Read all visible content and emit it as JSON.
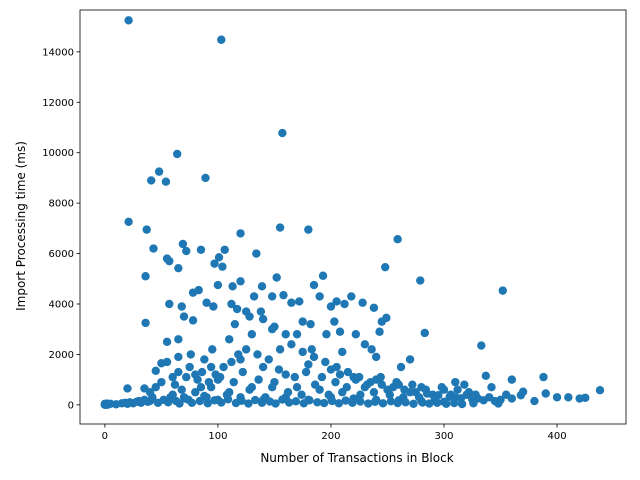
{
  "chart_data": {
    "type": "scatter",
    "title": "",
    "xlabel": "Number of Transactions in Block",
    "ylabel": "Import Processing time (ms)",
    "xlim": [
      -22,
      461
    ],
    "ylim": [
      -760,
      15660
    ],
    "xticks": [
      0,
      100,
      200,
      300,
      400
    ],
    "yticks": [
      0,
      2000,
      4000,
      6000,
      8000,
      10000,
      12000,
      14000
    ],
    "grid": false,
    "legend": "none",
    "marker_color": "#1f77b4",
    "points": [
      [
        0,
        0
      ],
      [
        0,
        20
      ],
      [
        0,
        40
      ],
      [
        1,
        10
      ],
      [
        1,
        30
      ],
      [
        2,
        0
      ],
      [
        2,
        50
      ],
      [
        3,
        20
      ],
      [
        5,
        40
      ],
      [
        10,
        20
      ],
      [
        15,
        60
      ],
      [
        18,
        80
      ],
      [
        20,
        40
      ],
      [
        22,
        100
      ],
      [
        25,
        60
      ],
      [
        28,
        120
      ],
      [
        30,
        150
      ],
      [
        32,
        80
      ],
      [
        35,
        200
      ],
      [
        38,
        120
      ],
      [
        21,
        15250
      ],
      [
        103,
        14480
      ],
      [
        157,
        10780
      ],
      [
        64,
        9950
      ],
      [
        48,
        9250
      ],
      [
        89,
        9000
      ],
      [
        41,
        8900
      ],
      [
        54,
        8850
      ],
      [
        21,
        7260
      ],
      [
        37,
        6950
      ],
      [
        120,
        6800
      ],
      [
        155,
        7030
      ],
      [
        180,
        6950
      ],
      [
        69,
        6380
      ],
      [
        259,
        6570
      ],
      [
        43,
        6200
      ],
      [
        72,
        6100
      ],
      [
        85,
        6150
      ],
      [
        55,
        5800
      ],
      [
        57,
        5700
      ],
      [
        97,
        5600
      ],
      [
        101,
        5850
      ],
      [
        106,
        6150
      ],
      [
        134,
        6000
      ],
      [
        36,
        5100
      ],
      [
        104,
        5480
      ],
      [
        65,
        5420
      ],
      [
        193,
        5120
      ],
      [
        248,
        5460
      ],
      [
        279,
        4930
      ],
      [
        352,
        4530
      ],
      [
        57,
        4000
      ],
      [
        68,
        3900
      ],
      [
        78,
        4450
      ],
      [
        83,
        4550
      ],
      [
        90,
        4050
      ],
      [
        96,
        3900
      ],
      [
        100,
        4750
      ],
      [
        113,
        4700
      ],
      [
        120,
        4900
      ],
      [
        132,
        4300
      ],
      [
        139,
        4700
      ],
      [
        148,
        4300
      ],
      [
        152,
        5050
      ],
      [
        158,
        4350
      ],
      [
        165,
        4050
      ],
      [
        172,
        4100
      ],
      [
        185,
        4750
      ],
      [
        190,
        4300
      ],
      [
        200,
        3900
      ],
      [
        205,
        4100
      ],
      [
        212,
        4000
      ],
      [
        218,
        4300
      ],
      [
        228,
        4050
      ],
      [
        238,
        3850
      ],
      [
        245,
        3300
      ],
      [
        249,
        3450
      ],
      [
        283,
        2850
      ],
      [
        70,
        3500
      ],
      [
        78,
        3350
      ],
      [
        36,
        3250
      ],
      [
        65,
        2600
      ],
      [
        333,
        2350
      ],
      [
        55,
        2500
      ],
      [
        65,
        1900
      ],
      [
        50,
        1650
      ],
      [
        55,
        1700
      ],
      [
        45,
        1350
      ],
      [
        35,
        650
      ],
      [
        20,
        650
      ],
      [
        60,
        1100
      ],
      [
        80,
        1200
      ],
      [
        100,
        1000
      ],
      [
        120,
        1800
      ],
      [
        140,
        1500
      ],
      [
        160,
        1200
      ],
      [
        180,
        1600
      ],
      [
        200,
        1400
      ],
      [
        220,
        1100
      ],
      [
        240,
        1000
      ],
      [
        260,
        800
      ],
      [
        280,
        700
      ],
      [
        300,
        600
      ],
      [
        320,
        400
      ],
      [
        340,
        300
      ],
      [
        360,
        250
      ],
      [
        380,
        150
      ],
      [
        400,
        300
      ],
      [
        410,
        300
      ],
      [
        420,
        250
      ],
      [
        425,
        280
      ],
      [
        438,
        580
      ],
      [
        390,
        450
      ],
      [
        388,
        1100
      ],
      [
        360,
        1000
      ],
      [
        368,
        380
      ],
      [
        370,
        520
      ],
      [
        337,
        1150
      ],
      [
        310,
        900
      ],
      [
        270,
        1800
      ],
      [
        262,
        1500
      ],
      [
        240,
        1900
      ],
      [
        230,
        2400
      ],
      [
        210,
        2100
      ],
      [
        196,
        2800
      ],
      [
        182,
        3200
      ],
      [
        170,
        2800
      ],
      [
        150,
        3100
      ],
      [
        140,
        3400
      ],
      [
        130,
        2800
      ],
      [
        115,
        3200
      ],
      [
        110,
        2600
      ],
      [
        95,
        2200
      ],
      [
        88,
        1800
      ],
      [
        75,
        1500
      ],
      [
        65,
        1300
      ],
      [
        50,
        900
      ],
      [
        45,
        700
      ],
      [
        40,
        500
      ],
      [
        110,
        500
      ],
      [
        130,
        700
      ],
      [
        150,
        900
      ],
      [
        170,
        700
      ],
      [
        190,
        600
      ],
      [
        210,
        500
      ],
      [
        230,
        700
      ],
      [
        250,
        600
      ],
      [
        270,
        500
      ],
      [
        290,
        400
      ],
      [
        310,
        300
      ],
      [
        330,
        250
      ],
      [
        350,
        200
      ],
      [
        90,
        300
      ],
      [
        100,
        200
      ],
      [
        120,
        300
      ],
      [
        140,
        200
      ],
      [
        160,
        300
      ],
      [
        180,
        200
      ],
      [
        200,
        300
      ],
      [
        220,
        250
      ],
      [
        240,
        200
      ],
      [
        260,
        180
      ],
      [
        280,
        150
      ],
      [
        300,
        120
      ],
      [
        60,
        400
      ],
      [
        70,
        300
      ],
      [
        80,
        500
      ],
      [
        85,
        700
      ],
      [
        92,
        900
      ],
      [
        98,
        1200
      ],
      [
        105,
        1500
      ],
      [
        112,
        1700
      ],
      [
        118,
        2000
      ],
      [
        125,
        2200
      ],
      [
        135,
        2000
      ],
      [
        145,
        1800
      ],
      [
        155,
        2200
      ],
      [
        165,
        2400
      ],
      [
        175,
        2100
      ],
      [
        185,
        1900
      ],
      [
        195,
        1700
      ],
      [
        205,
        1500
      ],
      [
        215,
        1300
      ],
      [
        225,
        1100
      ],
      [
        235,
        900
      ],
      [
        245,
        800
      ],
      [
        255,
        700
      ],
      [
        265,
        600
      ],
      [
        275,
        500
      ],
      [
        285,
        450
      ],
      [
        295,
        380
      ],
      [
        305,
        320
      ],
      [
        315,
        260
      ],
      [
        325,
        220
      ],
      [
        335,
        180
      ],
      [
        345,
        150
      ],
      [
        76,
        2000
      ],
      [
        72,
        1100
      ],
      [
        58,
        300
      ],
      [
        62,
        800
      ],
      [
        68,
        600
      ],
      [
        74,
        200
      ],
      [
        82,
        1000
      ],
      [
        88,
        350
      ],
      [
        94,
        700
      ],
      [
        102,
        1100
      ],
      [
        108,
        400
      ],
      [
        114,
        900
      ],
      [
        122,
        1300
      ],
      [
        128,
        600
      ],
      [
        136,
        1000
      ],
      [
        142,
        300
      ],
      [
        148,
        700
      ],
      [
        154,
        1400
      ],
      [
        162,
        500
      ],
      [
        168,
        1100
      ],
      [
        174,
        400
      ],
      [
        178,
        1300
      ],
      [
        186,
        800
      ],
      [
        192,
        1100
      ],
      [
        198,
        400
      ],
      [
        204,
        900
      ],
      [
        208,
        1200
      ],
      [
        214,
        700
      ],
      [
        222,
        1000
      ],
      [
        226,
        400
      ],
      [
        232,
        800
      ],
      [
        238,
        500
      ],
      [
        244,
        1100
      ],
      [
        252,
        400
      ],
      [
        258,
        900
      ],
      [
        264,
        300
      ],
      [
        272,
        800
      ],
      [
        278,
        300
      ],
      [
        284,
        600
      ],
      [
        292,
        200
      ],
      [
        298,
        700
      ],
      [
        306,
        400
      ],
      [
        312,
        600
      ],
      [
        318,
        800
      ],
      [
        322,
        500
      ],
      [
        328,
        400
      ],
      [
        342,
        700
      ],
      [
        355,
        400
      ],
      [
        40,
        150
      ],
      [
        42,
        300
      ],
      [
        47,
        80
      ],
      [
        52,
        200
      ],
      [
        56,
        100
      ],
      [
        63,
        150
      ],
      [
        66,
        50
      ],
      [
        71,
        250
      ],
      [
        77,
        80
      ],
      [
        84,
        150
      ],
      [
        91,
        60
      ],
      [
        97,
        180
      ],
      [
        103,
        90
      ],
      [
        109,
        220
      ],
      [
        116,
        70
      ],
      [
        121,
        160
      ],
      [
        127,
        50
      ],
      [
        133,
        190
      ],
      [
        139,
        80
      ],
      [
        146,
        130
      ],
      [
        151,
        50
      ],
      [
        157,
        210
      ],
      [
        163,
        90
      ],
      [
        169,
        140
      ],
      [
        176,
        60
      ],
      [
        181,
        180
      ],
      [
        188,
        100
      ],
      [
        194,
        70
      ],
      [
        201,
        150
      ],
      [
        207,
        60
      ],
      [
        213,
        170
      ],
      [
        219,
        80
      ],
      [
        226,
        130
      ],
      [
        233,
        50
      ],
      [
        239,
        120
      ],
      [
        246,
        60
      ],
      [
        253,
        140
      ],
      [
        259,
        70
      ],
      [
        266,
        100
      ],
      [
        273,
        40
      ],
      [
        281,
        90
      ],
      [
        287,
        50
      ],
      [
        294,
        80
      ],
      [
        302,
        40
      ],
      [
        309,
        70
      ],
      [
        316,
        30
      ],
      [
        326,
        60
      ],
      [
        348,
        50
      ],
      [
        125,
        3700
      ],
      [
        138,
        3700
      ],
      [
        148,
        3000
      ],
      [
        160,
        2800
      ],
      [
        175,
        3300
      ],
      [
        183,
        2200
      ],
      [
        203,
        3300
      ],
      [
        208,
        2900
      ],
      [
        222,
        2800
      ],
      [
        236,
        2200
      ],
      [
        243,
        2900
      ],
      [
        117,
        3800
      ],
      [
        112,
        4000
      ],
      [
        128,
        3500
      ],
      [
        94,
        1500
      ],
      [
        86,
        1300
      ]
    ]
  }
}
